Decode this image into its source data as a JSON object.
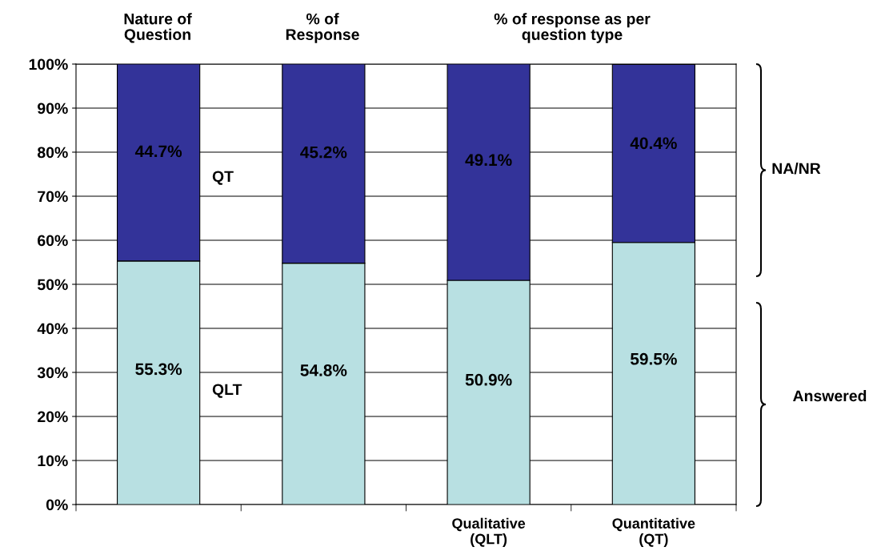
{
  "chart_data": {
    "type": "bar",
    "stacked": true,
    "categories": [
      null,
      null,
      "Qualitative\n(QLT)",
      "Quantitative\n(QT)"
    ],
    "series": [
      {
        "color": "#b8e0e2",
        "values": [
          55.3,
          54.8,
          50.9,
          59.5
        ]
      },
      {
        "color": "#333399",
        "values": [
          44.7,
          45.2,
          49.1,
          40.4
        ]
      }
    ],
    "value_labels": [
      [
        "55.3%",
        "54.8%",
        "50.9%",
        "59.5%"
      ],
      [
        "44.7%",
        "45.2%",
        "49.1%",
        "40.4%"
      ]
    ],
    "ylim": [
      0,
      100
    ],
    "yticks": [
      {
        "value": 0,
        "label": "0%"
      },
      {
        "value": 10,
        "label": "10%"
      },
      {
        "value": 20,
        "label": "20%"
      },
      {
        "value": 30,
        "label": "30%"
      },
      {
        "value": 40,
        "label": "40%"
      },
      {
        "value": 50,
        "label": "50%"
      },
      {
        "value": 60,
        "label": "60%"
      },
      {
        "value": 70,
        "label": "70%"
      },
      {
        "value": 80,
        "label": "80%"
      },
      {
        "value": 90,
        "label": "90%"
      },
      {
        "value": 100,
        "label": "100%"
      }
    ],
    "grid": "y",
    "legend": false,
    "annotations": [
      "Nature of\nQuestion",
      "% of\nResponse",
      "% of response as per\nquestion type",
      "QT",
      "QLT",
      "NA/NR",
      "Answered"
    ]
  }
}
